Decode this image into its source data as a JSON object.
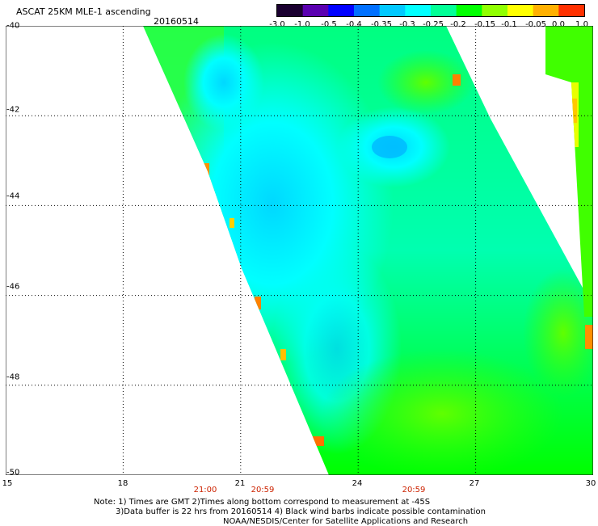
{
  "header": {
    "title": "ASCAT 25KM MLE-1 ascending",
    "date": "20160514"
  },
  "colorbar": {
    "labels": [
      "-3.0",
      "-1.0",
      "-0.5",
      "-0.4",
      "-0.35",
      "-0.3",
      "-0.25",
      "-0.2",
      "-0.15",
      "-0.1",
      "-0.05",
      "0.0",
      "1.0"
    ],
    "colors": [
      "#1a0030",
      "#5a00b0",
      "#0000ff",
      "#0070ff",
      "#00c8ff",
      "#00ffff",
      "#00ff96",
      "#00ff00",
      "#90ff00",
      "#ffff00",
      "#ffb000",
      "#ff3000"
    ]
  },
  "axes": {
    "lat_labels": [
      "-40",
      "-42",
      "-44",
      "-46",
      "-48",
      "-50"
    ],
    "lon_labels": [
      "15",
      "18",
      "21",
      "24",
      "27",
      "30"
    ],
    "lat_range": [
      -50,
      -40
    ],
    "lon_range": [
      15,
      30
    ]
  },
  "times": [
    "21:00",
    "20:59",
    "20:59"
  ],
  "notes": [
    "Note: 1) Times are GMT 2)Times along bottom correspond to measurement at -45S",
    "3)Data buffer is 22 hrs from 20160514 4) Black wind barbs indicate possible contamination",
    "NOAA/NESDIS/Center for Satellite Applications and Research"
  ],
  "colors": {
    "time_label": "#cc2200",
    "grid": "#000000"
  }
}
